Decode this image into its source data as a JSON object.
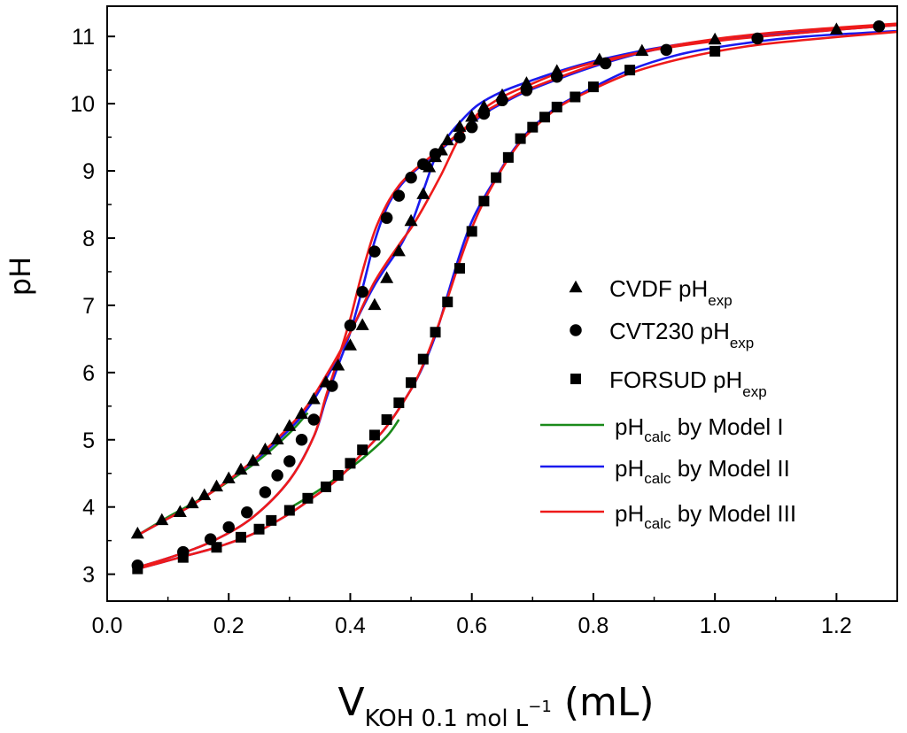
{
  "chart_data": {
    "type": "scatter",
    "title": "",
    "xlabel": {
      "main": "V",
      "sub": "KOH 0.1 mol L",
      "sup": "−1",
      "unit": " (mL)"
    },
    "ylabel": "pH",
    "xlim": [
      0.0,
      1.3
    ],
    "ylim": [
      2.6,
      11.45
    ],
    "xticks": [
      0.0,
      0.2,
      0.4,
      0.6,
      0.8,
      1.0,
      1.2
    ],
    "xtick_labels": [
      "0.0",
      "0.2",
      "0.4",
      "0.6",
      "0.8",
      "1.0",
      "1.2"
    ],
    "yticks": [
      3,
      4,
      5,
      6,
      7,
      8,
      9,
      10,
      11
    ],
    "ytick_labels": [
      "3",
      "4",
      "5",
      "6",
      "7",
      "8",
      "9",
      "10",
      "11"
    ],
    "grid": false,
    "legend_position": "center-right",
    "scatter_series": [
      {
        "name": "CVDF pH",
        "sub": "exp",
        "marker": "triangle",
        "color": "#000000",
        "x": [
          0.05,
          0.09,
          0.12,
          0.14,
          0.16,
          0.18,
          0.2,
          0.22,
          0.24,
          0.26,
          0.28,
          0.3,
          0.32,
          0.34,
          0.36,
          0.38,
          0.4,
          0.42,
          0.44,
          0.46,
          0.48,
          0.5,
          0.52,
          0.53,
          0.54,
          0.55,
          0.56,
          0.58,
          0.6,
          0.62,
          0.65,
          0.69,
          0.74,
          0.81,
          0.88,
          1.0,
          1.2
        ],
        "y": [
          3.6,
          3.8,
          3.92,
          4.05,
          4.17,
          4.3,
          4.42,
          4.55,
          4.68,
          4.85,
          5.0,
          5.2,
          5.38,
          5.6,
          5.85,
          6.1,
          6.4,
          6.7,
          7.0,
          7.4,
          7.8,
          8.25,
          8.65,
          9.05,
          9.2,
          9.3,
          9.45,
          9.65,
          9.8,
          9.95,
          10.12,
          10.3,
          10.48,
          10.65,
          10.78,
          10.95,
          11.1
        ]
      },
      {
        "name": "CVT230 pH",
        "sub": "exp",
        "marker": "circle",
        "color": "#000000",
        "x": [
          0.05,
          0.125,
          0.17,
          0.2,
          0.23,
          0.26,
          0.28,
          0.3,
          0.32,
          0.34,
          0.37,
          0.4,
          0.42,
          0.44,
          0.46,
          0.48,
          0.5,
          0.52,
          0.54,
          0.58,
          0.6,
          0.62,
          0.65,
          0.69,
          0.74,
          0.82,
          0.92,
          1.07,
          1.27
        ],
        "y": [
          3.13,
          3.33,
          3.52,
          3.7,
          3.92,
          4.22,
          4.47,
          4.68,
          5.0,
          5.3,
          5.8,
          6.7,
          7.2,
          7.8,
          8.3,
          8.63,
          8.9,
          9.1,
          9.25,
          9.5,
          9.65,
          9.85,
          10.05,
          10.2,
          10.4,
          10.6,
          10.8,
          10.97,
          11.15
        ]
      },
      {
        "name": "FORSUD pH",
        "sub": "exp",
        "marker": "square",
        "color": "#000000",
        "x": [
          0.05,
          0.125,
          0.18,
          0.22,
          0.25,
          0.27,
          0.3,
          0.33,
          0.36,
          0.38,
          0.4,
          0.42,
          0.44,
          0.46,
          0.48,
          0.5,
          0.52,
          0.54,
          0.56,
          0.58,
          0.6,
          0.62,
          0.64,
          0.66,
          0.68,
          0.7,
          0.72,
          0.74,
          0.77,
          0.8,
          0.86,
          1.0
        ],
        "y": [
          3.08,
          3.25,
          3.4,
          3.55,
          3.67,
          3.8,
          3.95,
          4.13,
          4.3,
          4.47,
          4.65,
          4.85,
          5.07,
          5.3,
          5.55,
          5.85,
          6.2,
          6.6,
          7.05,
          7.55,
          8.1,
          8.55,
          8.9,
          9.2,
          9.48,
          9.65,
          9.8,
          9.95,
          10.1,
          10.25,
          10.5,
          10.78
        ]
      }
    ],
    "model_series": [
      {
        "name": "pH",
        "sub": "calc",
        "suffix": " by Model I",
        "color": "#1a8a1a",
        "curves": [
          {
            "x": [
              0.05,
              0.1,
              0.15,
              0.2,
              0.25,
              0.3,
              0.33
            ],
            "y": [
              3.58,
              3.85,
              4.1,
              4.38,
              4.7,
              5.1,
              5.4
            ]
          },
          {
            "x": [
              0.3,
              0.34,
              0.38,
              0.42,
              0.46,
              0.48
            ],
            "y": [
              3.98,
              4.2,
              4.45,
              4.72,
              5.05,
              5.3
            ]
          }
        ]
      },
      {
        "name": "pH",
        "sub": "calc",
        "suffix": " by Model II",
        "color": "#1a1aee",
        "curves": [
          {
            "x": [
              0.05,
              0.09,
              0.14,
              0.2,
              0.26,
              0.32,
              0.36,
              0.4,
              0.44,
              0.48,
              0.5,
              0.52,
              0.54,
              0.56,
              0.58,
              0.61,
              0.65,
              0.7,
              0.75,
              0.81,
              0.9,
              1.0,
              1.1,
              1.2,
              1.3
            ],
            "y": [
              3.58,
              3.78,
              4.03,
              4.4,
              4.82,
              5.35,
              5.9,
              6.6,
              7.3,
              7.85,
              8.2,
              8.7,
              9.2,
              9.5,
              9.72,
              9.98,
              10.18,
              10.35,
              10.5,
              10.65,
              10.82,
              10.95,
              11.02,
              11.1,
              11.17
            ]
          },
          {
            "x": [
              0.05,
              0.12,
              0.18,
              0.24,
              0.3,
              0.34,
              0.36,
              0.38,
              0.4,
              0.42,
              0.44,
              0.46,
              0.48,
              0.5,
              0.52,
              0.54,
              0.58,
              0.62,
              0.66,
              0.7,
              0.8,
              0.9,
              1.0,
              1.1,
              1.2,
              1.3
            ],
            "y": [
              3.1,
              3.3,
              3.52,
              3.85,
              4.4,
              5.05,
              5.6,
              6.1,
              6.6,
              7.25,
              7.95,
              8.45,
              8.75,
              8.95,
              9.1,
              9.25,
              9.55,
              9.85,
              10.05,
              10.22,
              10.55,
              10.8,
              10.95,
              11.05,
              11.12,
              11.18
            ]
          },
          {
            "x": [
              0.05,
              0.12,
              0.18,
              0.24,
              0.3,
              0.34,
              0.38,
              0.42,
              0.46,
              0.5,
              0.52,
              0.54,
              0.56,
              0.58,
              0.6,
              0.62,
              0.64,
              0.66,
              0.68,
              0.7,
              0.74,
              0.78,
              0.86,
              0.95,
              1.05,
              1.15,
              1.3
            ],
            "y": [
              3.08,
              3.25,
              3.4,
              3.6,
              3.9,
              4.15,
              4.42,
              4.8,
              5.2,
              5.75,
              6.1,
              6.55,
              7.15,
              7.75,
              8.25,
              8.6,
              8.9,
              9.2,
              9.45,
              9.65,
              9.95,
              10.15,
              10.5,
              10.75,
              10.9,
              11.0,
              11.08
            ]
          }
        ]
      },
      {
        "name": "pH",
        "sub": "calc",
        "suffix": " by Model III",
        "color": "#ee1a1a",
        "curves": [
          {
            "x": [
              0.05,
              0.09,
              0.14,
              0.2,
              0.26,
              0.32,
              0.36,
              0.4,
              0.44,
              0.48,
              0.5,
              0.52,
              0.55,
              0.58,
              0.61,
              0.65,
              0.7,
              0.75,
              0.81,
              0.9,
              1.0,
              1.1,
              1.2,
              1.3
            ],
            "y": [
              3.58,
              3.78,
              4.03,
              4.4,
              4.85,
              5.4,
              5.95,
              6.6,
              7.35,
              7.9,
              8.15,
              8.45,
              8.95,
              9.5,
              9.85,
              10.1,
              10.3,
              10.48,
              10.63,
              10.8,
              10.93,
              11.02,
              11.1,
              11.17
            ]
          },
          {
            "x": [
              0.05,
              0.12,
              0.18,
              0.24,
              0.3,
              0.34,
              0.36,
              0.38,
              0.4,
              0.42,
              0.44,
              0.46,
              0.48,
              0.5,
              0.52,
              0.54,
              0.58,
              0.62,
              0.66,
              0.7,
              0.8,
              0.9,
              1.0,
              1.1,
              1.2,
              1.3
            ],
            "y": [
              3.1,
              3.3,
              3.52,
              3.85,
              4.4,
              5.05,
              5.65,
              6.2,
              6.8,
              7.5,
              8.1,
              8.5,
              8.78,
              8.97,
              9.12,
              9.27,
              9.57,
              9.87,
              10.07,
              10.24,
              10.57,
              10.81,
              10.96,
              11.06,
              11.13,
              11.19
            ]
          },
          {
            "x": [
              0.05,
              0.12,
              0.18,
              0.24,
              0.3,
              0.34,
              0.38,
              0.42,
              0.46,
              0.5,
              0.52,
              0.54,
              0.56,
              0.58,
              0.6,
              0.62,
              0.64,
              0.66,
              0.68,
              0.7,
              0.74,
              0.78,
              0.86,
              0.95,
              1.05,
              1.15,
              1.3
            ],
            "y": [
              3.08,
              3.25,
              3.4,
              3.6,
              3.9,
              4.15,
              4.42,
              4.8,
              5.2,
              5.75,
              6.12,
              6.58,
              7.1,
              7.65,
              8.15,
              8.55,
              8.88,
              9.18,
              9.43,
              9.62,
              9.93,
              10.13,
              10.45,
              10.68,
              10.85,
              10.95,
              11.07
            ]
          }
        ]
      }
    ]
  }
}
